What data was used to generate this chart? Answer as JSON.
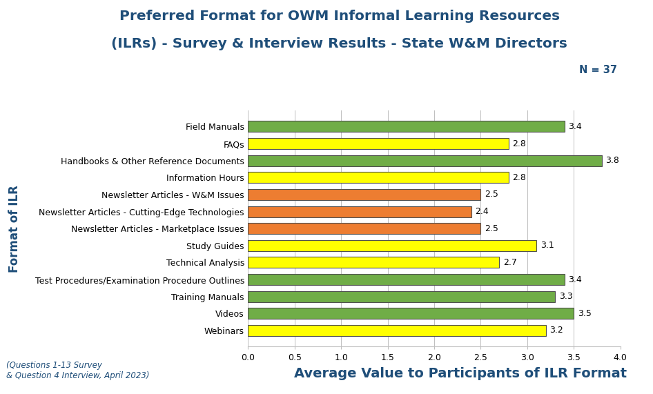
{
  "title_line1": "Preferred Format for OWM Informal Learning Resources",
  "title_line2": "(ILRs) - Survey & Interview Results - State W&M Directors",
  "n_label": "N = 37",
  "categories": [
    "Field Manuals",
    "FAQs",
    "Handbooks & Other Reference Documents",
    "Information Hours",
    "Newsletter Articles - W&M Issues",
    "Newsletter Articles - Cutting-Edge Technologies",
    "Newsletter Articles - Marketplace Issues",
    "Study Guides",
    "Technical Analysis",
    "Test Procedures/Examination Procedure Outlines",
    "Training Manuals",
    "Videos",
    "Webinars"
  ],
  "values": [
    3.4,
    2.8,
    3.8,
    2.8,
    2.5,
    2.4,
    2.5,
    3.1,
    2.7,
    3.4,
    3.3,
    3.5,
    3.2
  ],
  "bar_colors": [
    "#70AD47",
    "#FFFF00",
    "#70AD47",
    "#FFFF00",
    "#ED7D31",
    "#ED7D31",
    "#ED7D31",
    "#FFFF00",
    "#FFFF00",
    "#70AD47",
    "#70AD47",
    "#70AD47",
    "#FFFF00"
  ],
  "bar_edge_color": "#505050",
  "xlabel": "Average Value to Participants of ILR Format",
  "ylabel": "Format of ILR",
  "xlim": [
    0.0,
    4.0
  ],
  "xticks": [
    0.0,
    0.5,
    1.0,
    1.5,
    2.0,
    2.5,
    3.0,
    3.5,
    4.0
  ],
  "title_color": "#1F4E79",
  "xlabel_color": "#1F4E79",
  "ylabel_color": "#1F4E79",
  "n_label_color": "#1F4E79",
  "footnote": "(Questions 1-13 Survey\n& Question 4 Interview, April 2023)",
  "footnote_color": "#1F4E79",
  "background_color": "#FFFFFF",
  "grid_color": "#BFBFBF",
  "title_fontsize": 14.5,
  "label_fontsize": 9.0,
  "value_fontsize": 9.0,
  "xlabel_fontsize": 14,
  "ylabel_fontsize": 12,
  "n_fontsize": 10.5,
  "footnote_fontsize": 8.5
}
